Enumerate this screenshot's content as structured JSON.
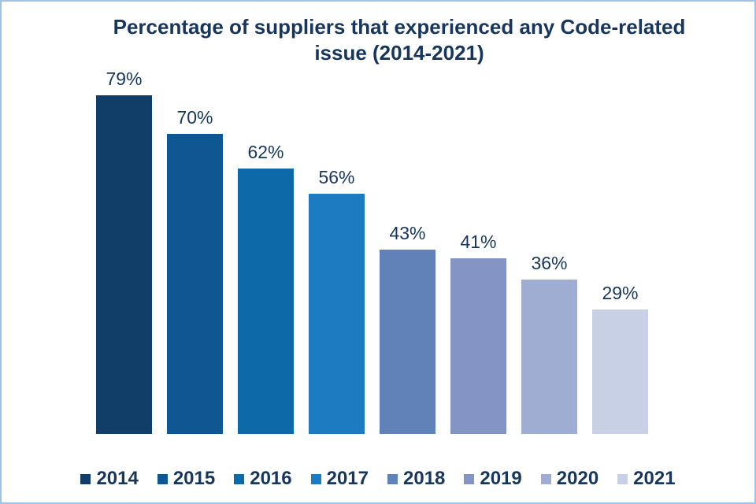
{
  "chart_data": {
    "type": "bar",
    "title": "Percentage of suppliers that experienced any Code-related issue (2014-2021)",
    "categories": [
      "2014",
      "2015",
      "2016",
      "2017",
      "2018",
      "2019",
      "2020",
      "2021"
    ],
    "values": [
      79,
      70,
      62,
      56,
      43,
      41,
      36,
      29
    ],
    "value_labels": [
      "79%",
      "70%",
      "62%",
      "56%",
      "43%",
      "41%",
      "36%",
      "29%"
    ],
    "bar_colors": [
      "#113e68",
      "#0f5793",
      "#0e69a9",
      "#1d7cc1",
      "#6181b9",
      "#8394c5",
      "#9fadd3",
      "#c7d0e5"
    ],
    "xlabel": "",
    "ylabel": "",
    "ylim": [
      0,
      85
    ],
    "grid": false,
    "legend_position": "bottom",
    "title_color": "#17365d",
    "label_color": "#17365d",
    "frame_border_color": "#9cc3e8"
  }
}
